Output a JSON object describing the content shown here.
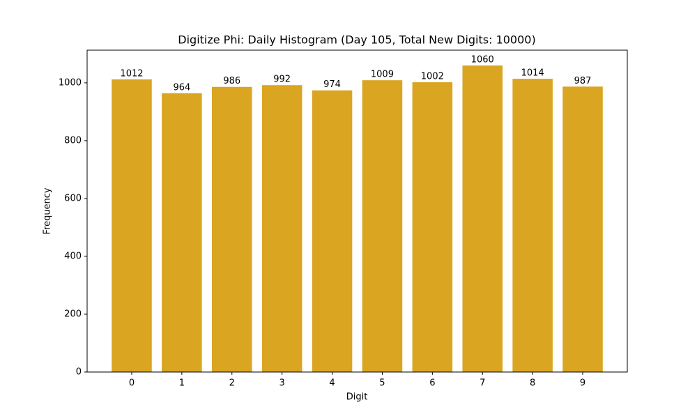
{
  "chart_data": {
    "type": "bar",
    "title": "Digitize Phi: Daily Histogram (Day 105, Total New Digits: 10000)",
    "x_label": "Digit",
    "y_label": "Frequency",
    "x": [
      0,
      1,
      2,
      3,
      4,
      5,
      6,
      7,
      8,
      9
    ],
    "values": [
      1012,
      964,
      986,
      992,
      974,
      1009,
      1002,
      1060,
      1014,
      987
    ],
    "color": "#daa520",
    "bar_width": 0.8,
    "xlim": [
      -0.89,
      9.89
    ],
    "xticks": [
      0,
      1,
      2,
      3,
      4,
      5,
      6,
      7,
      8,
      9
    ],
    "ylim": [
      0,
      1113
    ],
    "yticks": [
      0,
      200,
      400,
      600,
      800,
      1000
    ]
  }
}
